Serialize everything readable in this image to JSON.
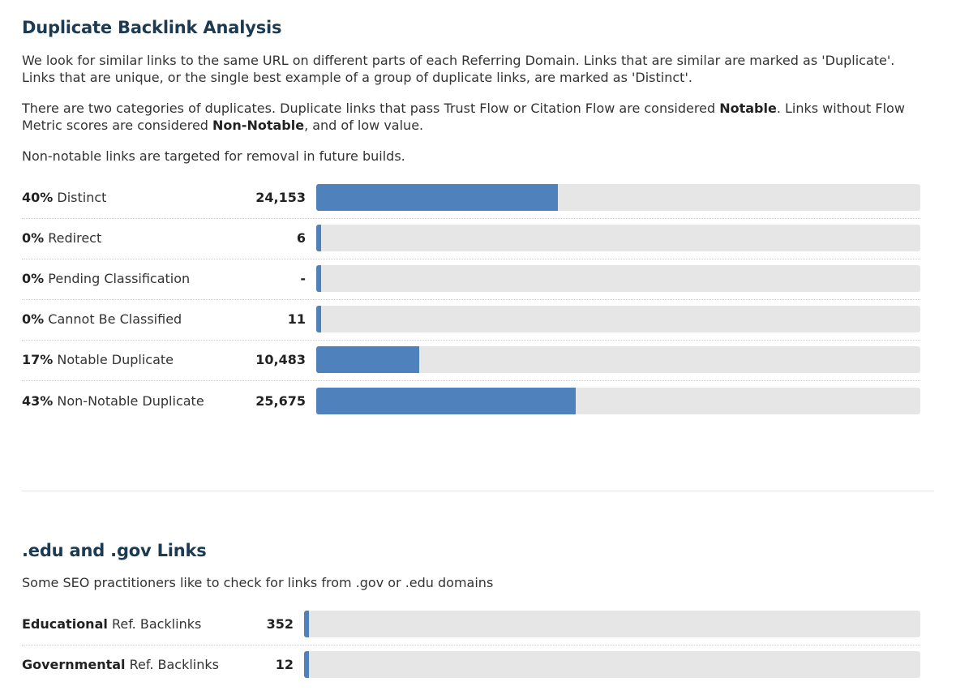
{
  "duplicate_section": {
    "title": "Duplicate Backlink Analysis",
    "para1": "We look for similar links to the same URL on different parts of each Referring Domain. Links that are similar are marked as 'Duplicate'. Links that are unique, or the single best example of a group of duplicate links, are marked as 'Distinct'.",
    "para2_a": "There are two categories of duplicates. Duplicate links that pass Trust Flow or Citation Flow are considered ",
    "para2_notable": "Notable",
    "para2_b": ". Links without Flow Metric scores are considered ",
    "para2_nonnotable": "Non-Notable",
    "para2_c": ", and of low value.",
    "para3": "Non-notable links are targeted for removal in future builds.",
    "rows": [
      {
        "pct": "40%",
        "label": "Distinct",
        "count": "24,153",
        "fill": 0.4
      },
      {
        "pct": "0%",
        "label": "Redirect",
        "count": "6",
        "fill": 0.0
      },
      {
        "pct": "0%",
        "label": "Pending Classification",
        "count": "-",
        "fill": 0.0
      },
      {
        "pct": "0%",
        "label": "Cannot Be Classified",
        "count": "11",
        "fill": 0.0
      },
      {
        "pct": "17%",
        "label": "Notable Duplicate",
        "count": "10,483",
        "fill": 0.17
      },
      {
        "pct": "43%",
        "label": "Non-Notable Duplicate",
        "count": "25,675",
        "fill": 0.43
      }
    ]
  },
  "edu_gov_section": {
    "title": ".edu and .gov Links",
    "desc": "Some SEO practitioners like to check for links from .gov or .edu domains",
    "rows": [
      {
        "bold": "Educational",
        "label": "Ref. Backlinks",
        "count": "352",
        "fill": 0.0
      },
      {
        "bold": "Governmental",
        "label": "Ref. Backlinks",
        "count": "12",
        "fill": 0.0
      }
    ]
  },
  "colors": {
    "bar_fill": "#4f81bd",
    "bar_track": "#e6e6e6",
    "heading": "#1c3a52"
  }
}
